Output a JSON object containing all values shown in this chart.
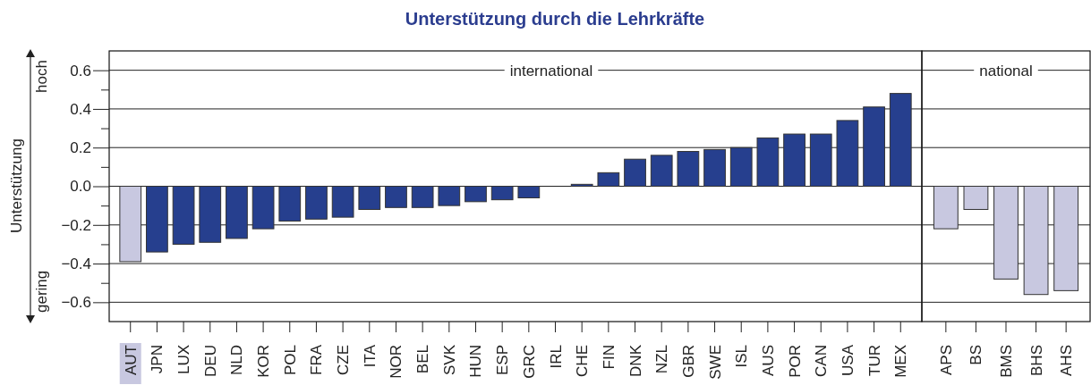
{
  "chart_data": [
    {
      "type": "bar",
      "title": "Unterstützung durch die Lehrkräfte",
      "subtitle": "international",
      "ylabel": "Unterstützung",
      "annotations": [
        "hoch",
        "gering"
      ],
      "categories": [
        "AUT",
        "JPN",
        "LUX",
        "DEU",
        "NLD",
        "KOR",
        "POL",
        "FRA",
        "CZE",
        "ITA",
        "NOR",
        "BEL",
        "SVK",
        "HUN",
        "ESP",
        "GRC",
        "IRL",
        "CHE",
        "FIN",
        "DNK",
        "NZL",
        "GBR",
        "SWE",
        "ISL",
        "AUS",
        "POR",
        "CAN",
        "USA",
        "TUR",
        "MEX"
      ],
      "values": [
        -0.39,
        -0.34,
        -0.3,
        -0.29,
        -0.27,
        -0.22,
        -0.18,
        -0.17,
        -0.16,
        -0.12,
        -0.11,
        -0.11,
        -0.1,
        -0.08,
        -0.07,
        -0.06,
        0,
        0.01,
        0.07,
        0.14,
        0.16,
        0.18,
        0.19,
        0.2,
        0.25,
        0.27,
        0.27,
        0.34,
        0.41,
        0.48
      ],
      "colors": [
        "#c8c8e0",
        "#263f8e",
        "#263f8e",
        "#263f8e",
        "#263f8e",
        "#263f8e",
        "#263f8e",
        "#263f8e",
        "#263f8e",
        "#263f8e",
        "#263f8e",
        "#263f8e",
        "#263f8e",
        "#263f8e",
        "#263f8e",
        "#263f8e",
        "#263f8e",
        "#263f8e",
        "#263f8e",
        "#263f8e",
        "#263f8e",
        "#263f8e",
        "#263f8e",
        "#263f8e",
        "#263f8e",
        "#263f8e",
        "#263f8e",
        "#263f8e",
        "#263f8e",
        "#263f8e"
      ],
      "ylim": [
        -0.7,
        0.7
      ],
      "yticks": [
        {
          "value": -0.6,
          "label": "−0.6"
        },
        {
          "value": -0.5,
          "label": null
        },
        {
          "value": -0.4,
          "label": "−0.4"
        },
        {
          "value": -0.3,
          "label": null
        },
        {
          "value": -0.2,
          "label": "−0.2"
        },
        {
          "value": -0.1,
          "label": null
        },
        {
          "value": 0,
          "label": "0.0"
        },
        {
          "value": 0.1,
          "label": null
        },
        0.2,
        {
          "value": 0.3,
          "label": null
        },
        0.4,
        {
          "value": 0.5,
          "label": null
        },
        0.6
      ],
      "grid": "y"
    },
    {
      "type": "bar",
      "subtitle": "national",
      "categories": [
        "APS",
        "BS",
        "BMS",
        "BHS",
        "AHS"
      ],
      "values": [
        -0.22,
        -0.12,
        -0.48,
        -0.56,
        -0.54
      ],
      "colors": [
        "#c8c8e0",
        "#c8c8e0",
        "#c8c8e0",
        "#c8c8e0",
        "#c8c8e0"
      ],
      "ylim": [
        -0.7,
        0.7
      ],
      "yticks": [
        -0.6,
        -0.4,
        -0.2,
        0,
        0.2,
        0.4,
        0.6
      ],
      "grid": "y",
      "tick_labels": "x"
    }
  ]
}
